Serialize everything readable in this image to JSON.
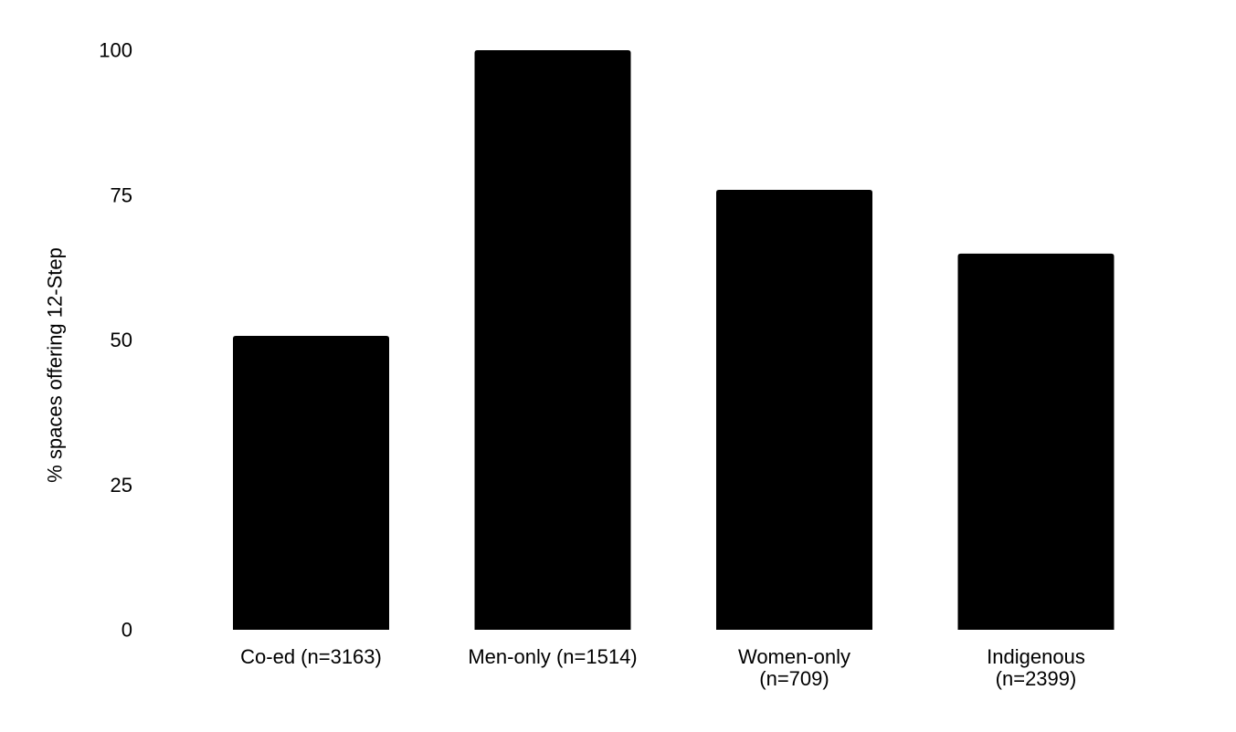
{
  "chart_data": {
    "type": "bar",
    "title": "",
    "xlabel": "",
    "ylabel": "% spaces offering 12-Step",
    "ylim": [
      0,
      100
    ],
    "yticks": [
      "0",
      "25",
      "50",
      "75",
      "100"
    ],
    "grid": false,
    "categories": [
      [
        "Co-ed (n=3163)"
      ],
      [
        "Men-only (n=1514)"
      ],
      [
        "Women-only",
        "(n=709)"
      ],
      [
        "Indigenous",
        "(n=2399)"
      ]
    ],
    "values": [
      50.7,
      100,
      75.9,
      64.9
    ],
    "bar_color": "#000000"
  }
}
